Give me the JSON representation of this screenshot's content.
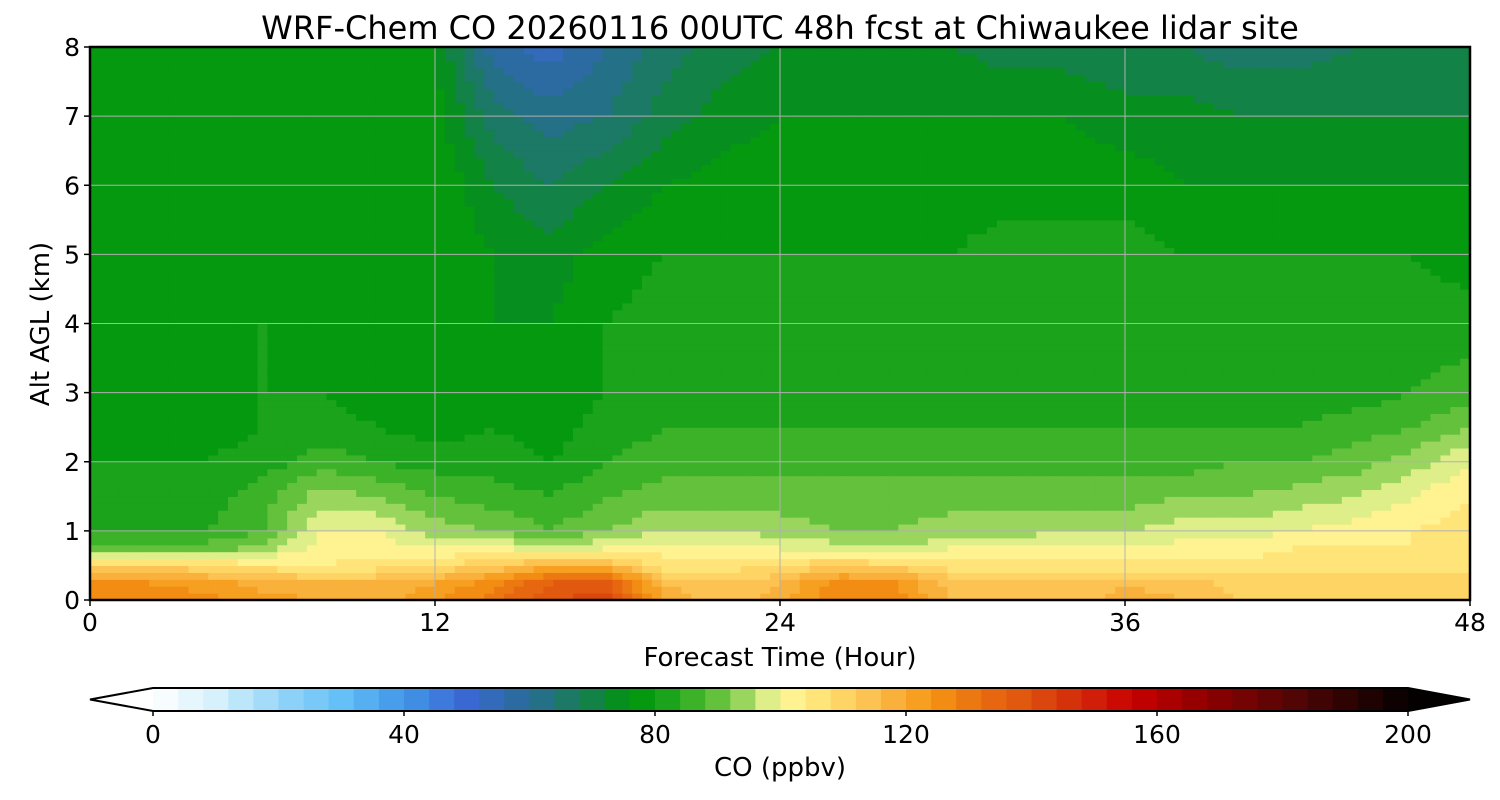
{
  "chart_data": {
    "type": "heatmap",
    "title": "WRF-Chem CO  20260116 00UTC 48h fcst at Chiwaukee lidar site",
    "xlabel": "Forecast Time (Hour)",
    "ylabel": "Alt AGL (km)",
    "xlim": [
      0,
      48
    ],
    "ylim": [
      0,
      8
    ],
    "x_ticks": [
      0,
      12,
      24,
      36,
      48
    ],
    "y_ticks": [
      0,
      1,
      2,
      3,
      4,
      5,
      6,
      7,
      8
    ],
    "grid": true,
    "x_hours": [
      0,
      2,
      4,
      6,
      8,
      10,
      12,
      14,
      16,
      18,
      20,
      22,
      24,
      26,
      28,
      30,
      32,
      34,
      36,
      38,
      40,
      42,
      44,
      46,
      48
    ],
    "z_km": [
      0,
      0.25,
      0.5,
      0.75,
      1,
      1.5,
      2,
      2.5,
      3,
      4,
      5,
      6,
      7,
      8
    ],
    "co_ppbv": [
      [
        126,
        127,
        126,
        122,
        120,
        118,
        124,
        130,
        140,
        142,
        118,
        114,
        118,
        128,
        126,
        116,
        114,
        114,
        118,
        116,
        112,
        112,
        112,
        112,
        112
      ],
      [
        124,
        124,
        122,
        118,
        116,
        116,
        120,
        126,
        136,
        138,
        116,
        112,
        116,
        126,
        124,
        114,
        112,
        112,
        116,
        114,
        110,
        110,
        110,
        110,
        110
      ],
      [
        110,
        112,
        108,
        106,
        104,
        106,
        108,
        112,
        118,
        116,
        106,
        106,
        108,
        112,
        110,
        106,
        106,
        106,
        106,
        106,
        106,
        106,
        106,
        106,
        106
      ],
      [
        88,
        90,
        90,
        94,
        102,
        102,
        100,
        102,
        96,
        100,
        102,
        102,
        100,
        98,
        96,
        100,
        100,
        100,
        100,
        102,
        102,
        104,
        104,
        104,
        106
      ],
      [
        84,
        84,
        84,
        88,
        100,
        100,
        94,
        92,
        88,
        92,
        96,
        96,
        94,
        92,
        92,
        94,
        94,
        96,
        96,
        98,
        98,
        100,
        102,
        104,
        106
      ],
      [
        82,
        82,
        82,
        86,
        94,
        92,
        88,
        86,
        84,
        88,
        90,
        90,
        90,
        90,
        90,
        90,
        90,
        90,
        90,
        92,
        92,
        94,
        96,
        100,
        104
      ],
      [
        80,
        80,
        80,
        82,
        86,
        84,
        82,
        82,
        80,
        84,
        86,
        86,
        86,
        86,
        86,
        86,
        86,
        86,
        86,
        86,
        88,
        88,
        90,
        94,
        100
      ],
      [
        80,
        78,
        78,
        80,
        82,
        80,
        78,
        80,
        78,
        82,
        84,
        84,
        84,
        84,
        84,
        84,
        84,
        84,
        84,
        84,
        84,
        84,
        86,
        88,
        92
      ],
      [
        80,
        78,
        78,
        80,
        80,
        78,
        76,
        78,
        78,
        80,
        82,
        82,
        82,
        84,
        82,
        82,
        82,
        82,
        82,
        82,
        82,
        82,
        82,
        84,
        86
      ],
      [
        80,
        78,
        80,
        80,
        78,
        80,
        76,
        76,
        76,
        80,
        82,
        82,
        80,
        80,
        80,
        82,
        82,
        82,
        82,
        82,
        82,
        82,
        82,
        82,
        82
      ],
      [
        78,
        76,
        78,
        78,
        78,
        78,
        80,
        76,
        74,
        78,
        80,
        80,
        80,
        80,
        80,
        80,
        82,
        82,
        82,
        80,
        80,
        80,
        80,
        80,
        78
      ],
      [
        76,
        76,
        76,
        76,
        78,
        78,
        80,
        72,
        68,
        72,
        76,
        78,
        78,
        78,
        78,
        78,
        78,
        78,
        78,
        76,
        76,
        76,
        76,
        76,
        76
      ],
      [
        76,
        76,
        76,
        76,
        76,
        78,
        78,
        66,
        62,
        64,
        70,
        74,
        76,
        76,
        76,
        76,
        76,
        76,
        74,
        74,
        72,
        72,
        72,
        72,
        72
      ],
      [
        76,
        76,
        76,
        76,
        76,
        78,
        76,
        58,
        54,
        60,
        66,
        70,
        72,
        72,
        72,
        72,
        70,
        70,
        68,
        68,
        66,
        66,
        68,
        68,
        68
      ]
    ],
    "colorbar": {
      "label": "CO  (ppbv)",
      "min": 0,
      "max": 200,
      "ticks": [
        0,
        40,
        80,
        120,
        160,
        200
      ],
      "extend": "both"
    }
  }
}
